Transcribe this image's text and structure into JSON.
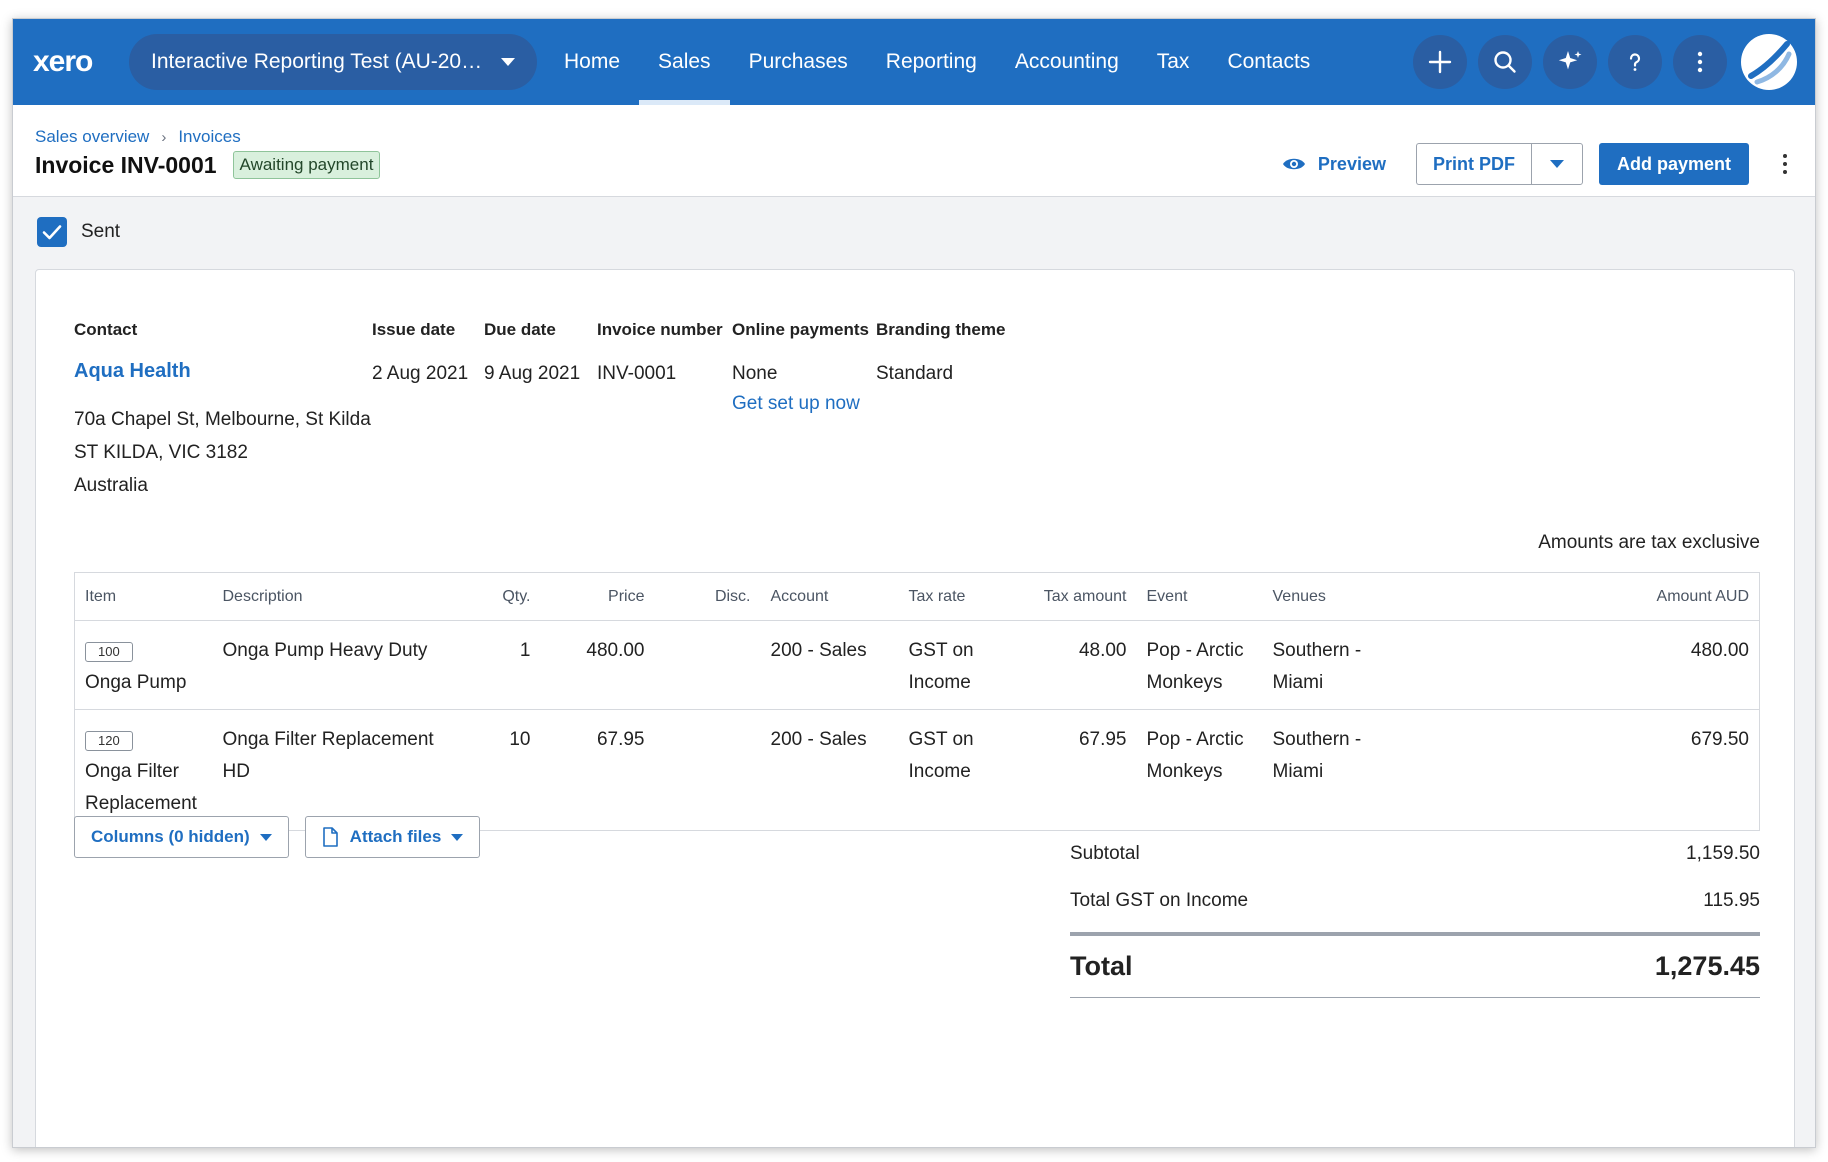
{
  "nav": {
    "logo": "xero",
    "org_name": "Interactive Reporting Test (AU-20…",
    "links": [
      "Home",
      "Sales",
      "Purchases",
      "Reporting",
      "Accounting",
      "Tax",
      "Contacts"
    ],
    "active": "Sales",
    "icons": [
      "plus-icon",
      "search-icon",
      "sparkle-icon",
      "help-icon",
      "more-icon",
      "avatar"
    ],
    "brand_color": "#1f6ec1"
  },
  "header": {
    "breadcrumb": [
      "Sales overview",
      "Invoices"
    ],
    "title": "Invoice INV-0001",
    "status": "Awaiting payment",
    "preview_label": "Preview",
    "print_label": "Print PDF",
    "add_payment_label": "Add payment"
  },
  "sent": {
    "label": "Sent",
    "checked": true
  },
  "invoice": {
    "headings": {
      "contact": "Contact",
      "issue_date": "Issue date",
      "due_date": "Due date",
      "invoice_number": "Invoice number",
      "online_payments": "Online payments",
      "branding_theme": "Branding theme"
    },
    "contact_name": "Aqua Health",
    "address": [
      "70a Chapel St, Melbourne, St Kilda",
      "ST KILDA, VIC 3182",
      "Australia"
    ],
    "issue_date": "2 Aug 2021",
    "due_date": "9 Aug 2021",
    "invoice_number": "INV-0001",
    "online_payments": "None",
    "setup_link": "Get set up now",
    "branding_theme": "Standard",
    "tax_note": "Amounts are tax exclusive"
  },
  "table": {
    "columns": [
      "Item",
      "Description",
      "Qty.",
      "Price",
      "Disc.",
      "Account",
      "Tax rate",
      "Tax amount",
      "Event",
      "Venues",
      "Amount AUD"
    ],
    "rows": [
      {
        "code": "100",
        "item": "Onga Pump",
        "description": "Onga Pump Heavy Duty",
        "qty": "1",
        "price": "480.00",
        "disc": "",
        "account": "200 - Sales",
        "tax_rate": "GST on Income",
        "tax_amount": "48.00",
        "event": "Pop - Arctic Monkeys",
        "venue": "Southern - Miami",
        "amount": "480.00"
      },
      {
        "code": "120",
        "item": "Onga Filter Replacement",
        "description": "Onga Filter Replacement HD",
        "qty": "10",
        "price": "67.95",
        "disc": "",
        "account": "200 - Sales",
        "tax_rate": "GST on Income",
        "tax_amount": "67.95",
        "event": "Pop - Arctic Monkeys",
        "venue": "Southern - Miami",
        "amount": "679.50"
      }
    ]
  },
  "actions": {
    "columns_label": "Columns (0 hidden)",
    "attach_label": "Attach files"
  },
  "totals": {
    "subtotal_label": "Subtotal",
    "subtotal": "1,159.50",
    "gst_label": "Total GST on Income",
    "gst": "115.95",
    "total_label": "Total",
    "total": "1,275.45"
  }
}
